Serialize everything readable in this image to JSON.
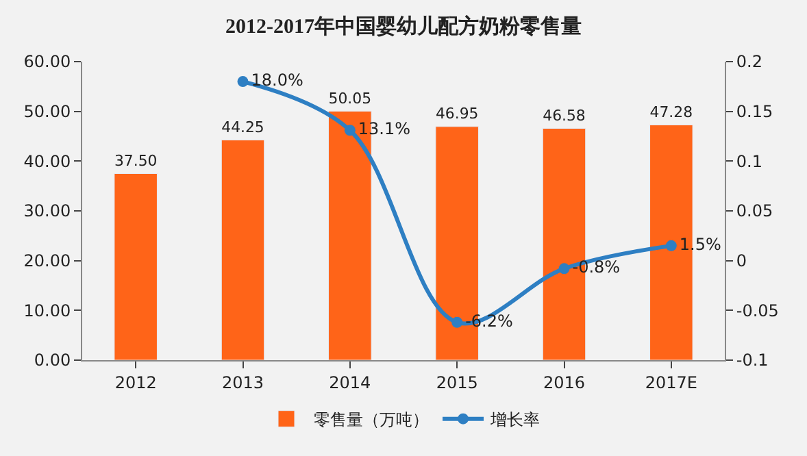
{
  "chart_data": {
    "type": "bar",
    "title": "2012-2017年中国婴幼儿配方奶粉零售量",
    "categories": [
      "2012",
      "2013",
      "2014",
      "2015",
      "2016",
      "2017E"
    ],
    "series": [
      {
        "name": "零售量（万吨）",
        "color": "#ff6418",
        "values": [
          37.5,
          44.25,
          50.05,
          46.95,
          46.58,
          47.28
        ],
        "value_labels": [
          "37.50",
          "44.25",
          "50.05",
          "46.95",
          "46.58",
          "47.28"
        ]
      },
      {
        "type": "line",
        "name": "增长率",
        "color": "#2e7fc3",
        "axis": "y2",
        "values": [
          null,
          0.18,
          0.131,
          -0.062,
          -0.008,
          0.015
        ],
        "value_labels": [
          null,
          "18.0%",
          "13.1%",
          "-6.2%",
          "-0.8%",
          "1.5%"
        ]
      }
    ],
    "ylim": [
      0,
      60
    ],
    "yticks": [
      {
        "value": 0,
        "label": "0.00"
      },
      {
        "value": 10,
        "label": "10.00"
      },
      {
        "value": 20,
        "label": "20.00"
      },
      {
        "value": 30,
        "label": "30.00"
      },
      {
        "value": 40,
        "label": "40.00"
      },
      {
        "value": 50,
        "label": "50.00"
      },
      {
        "value": 60,
        "label": "60.00"
      }
    ],
    "y2lim": [
      -0.1,
      0.2
    ],
    "y2ticks": [
      -0.1,
      -0.05,
      0,
      0.05,
      0.1,
      0.15,
      0.2
    ],
    "grid": false,
    "legend": "bottom",
    "marker": "circle",
    "line_style": "solid"
  }
}
